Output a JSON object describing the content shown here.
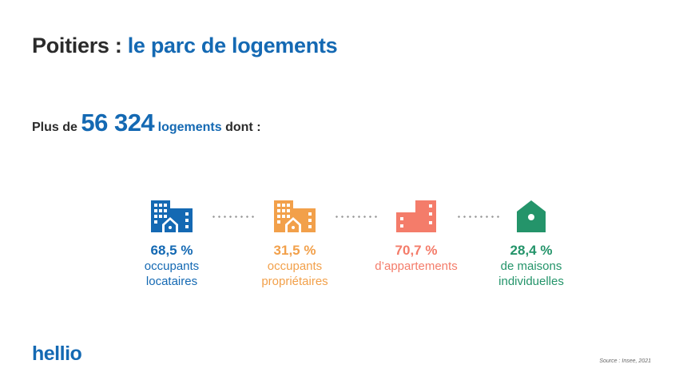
{
  "header": {
    "title_prefix": "Poitiers :",
    "title_main": "le parc de logements"
  },
  "summary": {
    "prefix": "Plus de",
    "count": "56 324",
    "unit": "logements",
    "suffix": "dont :"
  },
  "stats": [
    {
      "percent": "68,5 %",
      "line1": "occupants",
      "line2": "locataires",
      "icon": "building-with-house-icon",
      "color": "#1469b3"
    },
    {
      "percent": "31,5 %",
      "line1": "occupants",
      "line2": "propriétaires",
      "icon": "building-with-house-icon",
      "color": "#f2a04a"
    },
    {
      "percent": "70,7 %",
      "line1": "d’appartements",
      "line2": "",
      "icon": "apartment-building-icon",
      "color": "#f47c6a"
    },
    {
      "percent": "28,4 %",
      "line1": "de maisons",
      "line2": "individuelles",
      "icon": "house-icon",
      "color": "#24946a"
    }
  ],
  "footer": {
    "logo": "hellio",
    "source": "Source : Insee, 2021"
  }
}
